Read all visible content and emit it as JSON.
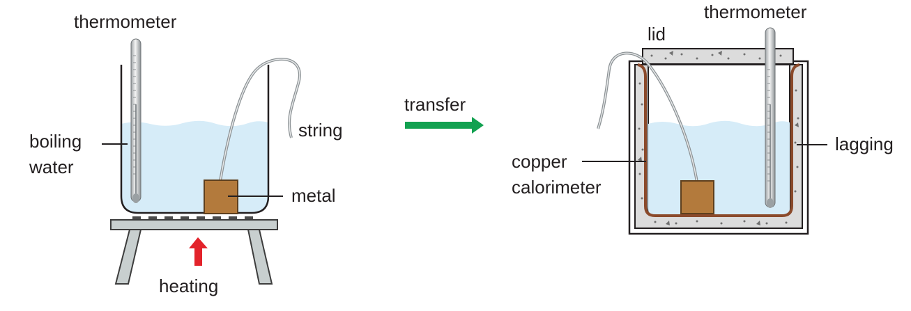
{
  "labels": {
    "left_thermometer": "thermometer",
    "boiling_line1": "boiling",
    "boiling_line2": "water",
    "string_left": "string",
    "metal": "metal",
    "heating": "heating",
    "transfer": "transfer",
    "lid": "lid",
    "right_thermometer": "thermometer",
    "copper_line1": "copper",
    "copper_line2": "calorimeter",
    "lagging": "lagging"
  },
  "colors": {
    "water": "#d6ecf8",
    "metal_block": "#b37a3c",
    "copper_wall": "#8b4a2b",
    "lagging_fill": "#dcdcdc",
    "stand": "#c8cfcf",
    "heating_arrow": "#e3232b",
    "transfer_arrow": "#12a150"
  }
}
